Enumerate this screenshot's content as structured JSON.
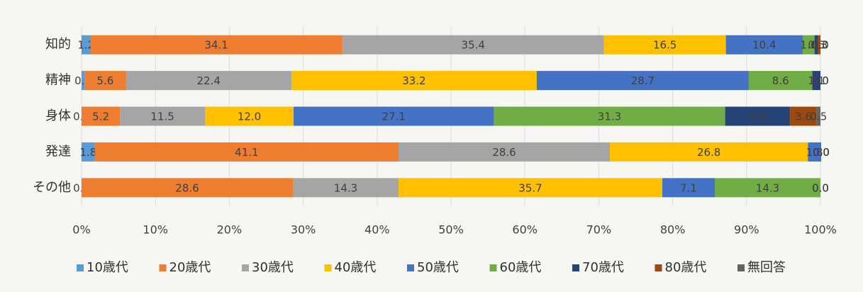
{
  "chart_data": {
    "type": "stacked_barh",
    "categories": [
      "知的",
      "精神",
      "身体",
      "発達",
      "その他"
    ],
    "series": [
      {
        "name": "10歳代",
        "color": "#5b9bd5",
        "values": [
          1.2,
          0.4,
          0.0,
          1.8,
          0.0
        ],
        "value_labels": [
          "1.2",
          "0.4",
          "0.0",
          "1.8",
          "0.0"
        ]
      },
      {
        "name": "20歳代",
        "color": "#ed7d31",
        "values": [
          34.1,
          5.6,
          5.2,
          41.1,
          28.6
        ],
        "value_labels": [
          "34.1",
          "5.6",
          "5.2",
          "41.1",
          "28.6"
        ]
      },
      {
        "name": "30歳代",
        "color": "#a5a5a5",
        "values": [
          35.4,
          22.4,
          11.5,
          28.6,
          14.3
        ],
        "value_labels": [
          "35.4",
          "22.4",
          "11.5",
          "28.6",
          "14.3"
        ]
      },
      {
        "name": "40歳代",
        "color": "#ffc000",
        "values": [
          16.5,
          33.2,
          12.0,
          26.8,
          35.7
        ],
        "value_labels": [
          "16.5",
          "33.2",
          "12.0",
          "26.8",
          "35.7"
        ]
      },
      {
        "name": "50歳代",
        "color": "#4472c4",
        "values": [
          10.4,
          28.7,
          27.1,
          1.8,
          7.1
        ],
        "value_labels": [
          "10.4",
          "28.7",
          "27.1",
          "1.8",
          "7.1"
        ]
      },
      {
        "name": "60歳代",
        "color": "#70ad47",
        "values": [
          1.6,
          8.6,
          31.3,
          0.0,
          14.3
        ],
        "value_labels": [
          "1.6",
          "8.6",
          "31.3",
          "0.0",
          "14.3"
        ]
      },
      {
        "name": "70歳代",
        "color": "#264478",
        "values": [
          0.5,
          1.1,
          8.8,
          0.0,
          0.0
        ],
        "value_labels": [
          "0.5",
          "1.1",
          "8.8",
          "0.0",
          "0.0"
        ]
      },
      {
        "name": "80歳代",
        "color": "#9e480e",
        "values": [
          0.3,
          0.0,
          3.6,
          0.0,
          0.0
        ],
        "value_labels": [
          "0.3",
          "0.0",
          "3.6",
          "0.0",
          "0.0"
        ]
      },
      {
        "name": "無回答",
        "color": "#636363",
        "values": [
          0.0,
          0.0,
          0.5,
          0.0,
          0.0
        ],
        "value_labels": [
          "0.0",
          "0.0",
          "0.5",
          "0.0",
          "0.0"
        ]
      }
    ],
    "xlim": [
      0,
      100
    ],
    "xticks": [
      {
        "value": 0,
        "label": "0%"
      },
      {
        "value": 10,
        "label": "10%"
      },
      {
        "value": 20,
        "label": "20%"
      },
      {
        "value": 30,
        "label": "30%"
      },
      {
        "value": 40,
        "label": "40%"
      },
      {
        "value": 50,
        "label": "50%"
      },
      {
        "value": 60,
        "label": "60%"
      },
      {
        "value": 70,
        "label": "70%"
      },
      {
        "value": 80,
        "label": "80%"
      },
      {
        "value": 90,
        "label": "90%"
      },
      {
        "value": 100,
        "label": "100%"
      }
    ],
    "grid": true,
    "legend": "bottom"
  }
}
